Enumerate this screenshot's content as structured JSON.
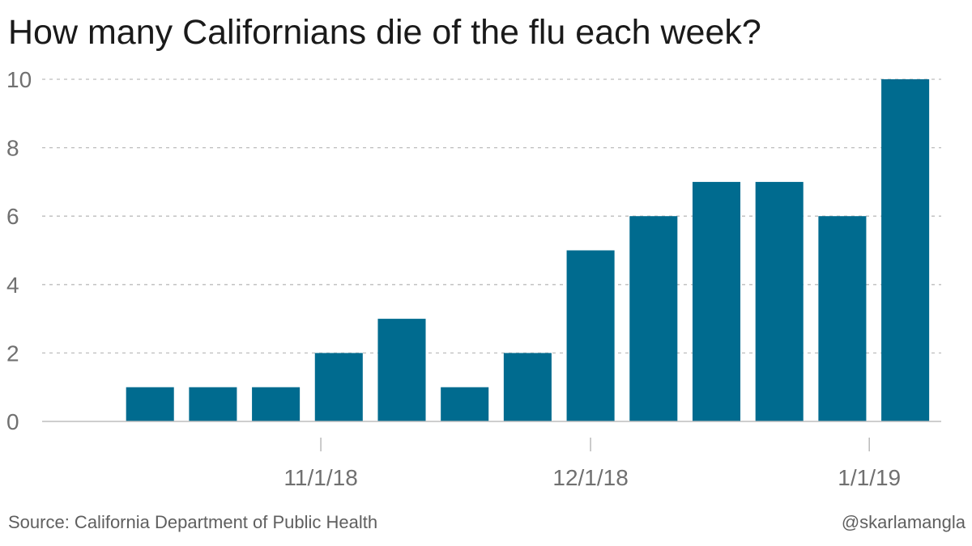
{
  "header": {
    "title": "How many Californians die of the flu each week?"
  },
  "footer": {
    "source": "Source: California Department of Public Health",
    "credit": "@skarlamangla"
  },
  "colors": {
    "bar": "#006b8f",
    "grid": "#bdbdbd",
    "axis": "#bdbdbd",
    "tick_text": "#707070"
  },
  "chart_data": {
    "type": "bar",
    "title": "How many Californians die of the flu each week?",
    "xlabel": "",
    "ylabel": "",
    "ylim": [
      0,
      10
    ],
    "yticks": [
      0,
      2,
      4,
      6,
      8,
      10
    ],
    "grid": true,
    "x_axis_type": "date",
    "x_range": [
      "2018-10-01",
      "2019-01-09"
    ],
    "xticks": [
      {
        "date": "2018-11-01",
        "label": "11/1/18"
      },
      {
        "date": "2018-12-01",
        "label": "12/1/18"
      },
      {
        "date": "2019-01-01",
        "label": "1/1/19"
      }
    ],
    "bar_period_days": 7,
    "dates": [
      "2018-10-06",
      "2018-10-13",
      "2018-10-20",
      "2018-10-27",
      "2018-11-03",
      "2018-11-10",
      "2018-11-17",
      "2018-11-24",
      "2018-12-01",
      "2018-12-08",
      "2018-12-15",
      "2018-12-22",
      "2018-12-29",
      "2019-01-05"
    ],
    "values": [
      0,
      1,
      1,
      1,
      2,
      3,
      1,
      2,
      5,
      6,
      7,
      7,
      6,
      10
    ]
  }
}
